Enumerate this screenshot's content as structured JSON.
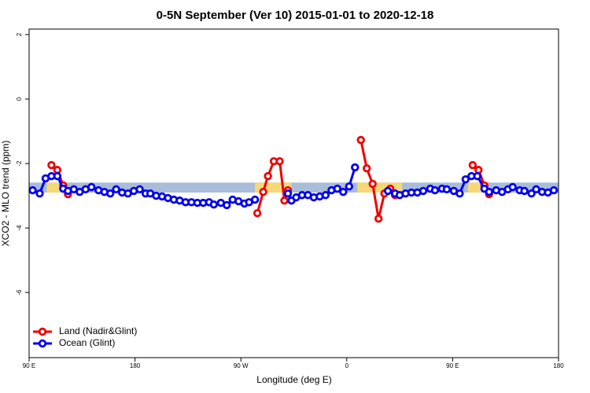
{
  "chart_data": {
    "type": "line",
    "title": "0-5N September (Ver 10)   2015-01-01 to 2020-12-18",
    "x_label": "Longitude (deg E)",
    "y_label": "XCO2 - MLO trend (ppm)",
    "xlim": [
      90,
      540
    ],
    "ylim": [
      -8.02,
      2.17
    ],
    "xticks": [
      {
        "value": 90,
        "label": "90 E"
      },
      180,
      {
        "value": 270,
        "label": "90 W"
      },
      {
        "value": 360,
        "label": "0"
      },
      {
        "value": 450,
        "label": "90 E"
      },
      {
        "value": 540,
        "label": "180"
      }
    ],
    "yticks": [
      2,
      0,
      -2,
      -4,
      -6
    ],
    "legend": "bottom-left",
    "band": {
      "ylim": [
        -2.9,
        -2.59
      ],
      "ocean_color": "#a9bcd9",
      "land_color": "#f7d878",
      "land_segments": [
        [
          105,
          119
        ],
        [
          282,
          313
        ],
        [
          369,
          407
        ],
        [
          463,
          475
        ]
      ]
    },
    "series": [
      {
        "name": "Land (Nadir&Glint)",
        "color": "#ee0000",
        "x": [
          109,
          114,
          119,
          123,
          200,
          284,
          289,
          293,
          298,
          303,
          307,
          310,
          340,
          372,
          377,
          382,
          387,
          392,
          397,
          401,
          430,
          467,
          472,
          477,
          481
        ],
        "values": [
          -2.05,
          -2.2,
          -2.68,
          -2.95,
          null,
          -3.54,
          -2.88,
          -2.39,
          -1.93,
          -1.93,
          -3.15,
          -2.83,
          null,
          -1.27,
          -2.15,
          -2.63,
          -3.71,
          -2.93,
          -2.78,
          -2.98,
          null,
          -2.05,
          -2.2,
          -2.68,
          -2.95
        ]
      },
      {
        "name": "Ocean (Glint)",
        "color": "#0000ee",
        "x": [
          93,
          99,
          104,
          109,
          114,
          119,
          123,
          128,
          133,
          138,
          143,
          149,
          154,
          159,
          164,
          169,
          174,
          179,
          184,
          189,
          193,
          198,
          203,
          208,
          213,
          218,
          223,
          228,
          233,
          238,
          243,
          247,
          253,
          258,
          263,
          268,
          273,
          277,
          282,
          296,
          310,
          313,
          317,
          322,
          327,
          332,
          337,
          342,
          347,
          352,
          357,
          362,
          367,
          380,
          395,
          401,
          405,
          410,
          415,
          420,
          425,
          431,
          435,
          441,
          445,
          451,
          456,
          461,
          466,
          471,
          477,
          481,
          487,
          492,
          497,
          501,
          507,
          511,
          517,
          521,
          526,
          531,
          536
        ],
        "values": [
          -2.83,
          -2.93,
          -2.46,
          -2.39,
          -2.39,
          -2.78,
          -2.85,
          -2.8,
          -2.88,
          -2.8,
          -2.73,
          -2.83,
          -2.88,
          -2.93,
          -2.8,
          -2.9,
          -2.93,
          -2.85,
          -2.8,
          -2.93,
          -2.93,
          -3.0,
          -3.02,
          -3.07,
          -3.12,
          -3.15,
          -3.2,
          -3.2,
          -3.22,
          -3.22,
          -3.2,
          -3.27,
          -3.22,
          -3.29,
          -3.12,
          -3.17,
          -3.24,
          -3.2,
          -3.12,
          null,
          -2.93,
          -3.15,
          -3.05,
          -2.98,
          -2.98,
          -3.05,
          -3.02,
          -2.98,
          -2.83,
          -2.78,
          -2.88,
          -2.71,
          -2.12,
          null,
          -2.85,
          -2.93,
          -2.98,
          -2.93,
          -2.9,
          -2.9,
          -2.85,
          -2.78,
          -2.83,
          -2.78,
          -2.8,
          -2.85,
          -2.93,
          -2.49,
          -2.39,
          -2.39,
          -2.78,
          -2.88,
          -2.83,
          -2.88,
          -2.8,
          -2.73,
          -2.83,
          -2.85,
          -2.93,
          -2.8,
          -2.88,
          -2.9,
          -2.83
        ]
      }
    ]
  }
}
